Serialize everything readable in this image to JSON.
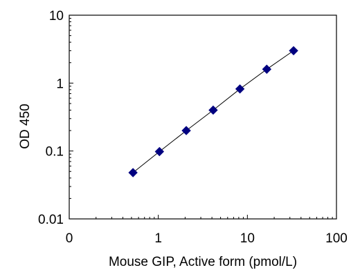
{
  "chart_data": {
    "type": "scatter",
    "title": "",
    "xlabel": "Mouse GIP, Active form (pmol/L)",
    "ylabel": "OD 450",
    "xscale": "log",
    "yscale": "log",
    "xlim": [
      0.1,
      100
    ],
    "ylim": [
      0.01,
      10
    ],
    "x_ticks": [
      "0",
      "1",
      "10",
      "100"
    ],
    "y_ticks": [
      "0.01",
      "0.1",
      "1",
      "10"
    ],
    "grid": false,
    "legend": "none",
    "trendline": "line connecting points",
    "series": [
      {
        "marker": "diamond",
        "color": "#000080",
        "points": [
          {
            "x": 0.52,
            "y": 0.048
          },
          {
            "x": 1.03,
            "y": 0.098
          },
          {
            "x": 2.06,
            "y": 0.2
          },
          {
            "x": 4.13,
            "y": 0.4
          },
          {
            "x": 8.25,
            "y": 0.82
          },
          {
            "x": 16.5,
            "y": 1.6
          },
          {
            "x": 33.0,
            "y": 3.0
          }
        ]
      }
    ]
  }
}
